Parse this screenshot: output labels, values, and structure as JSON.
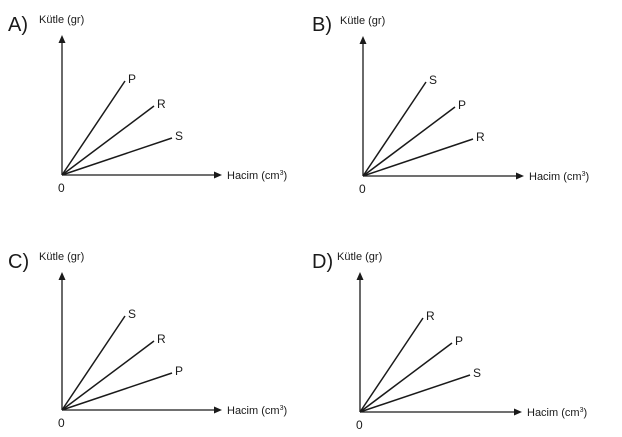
{
  "axes": {
    "y_label": "Kütle (gr)",
    "x_label_main": "Hacim (cm",
    "x_label_sup": "3",
    "x_label_close": ")",
    "origin": "0"
  },
  "options": [
    {
      "letter": "A)",
      "lines": [
        "P",
        "R",
        "S"
      ]
    },
    {
      "letter": "B)",
      "lines": [
        "S",
        "P",
        "R"
      ]
    },
    {
      "letter": "C)",
      "lines": [
        "S",
        "R",
        "P"
      ]
    },
    {
      "letter": "D)",
      "lines": [
        "R",
        "P",
        "S"
      ]
    }
  ]
}
